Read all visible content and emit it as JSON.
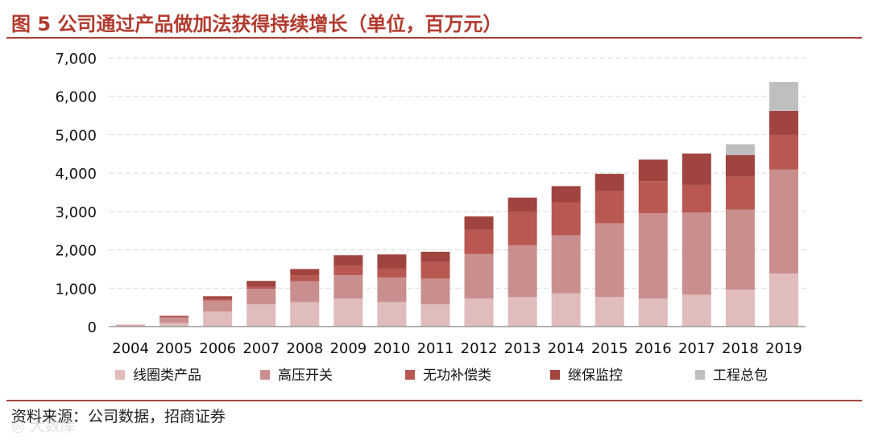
{
  "header": {
    "title": "图 5  公司通过产品做加法获得持续增长（单位，百万元）"
  },
  "footer": {
    "source": "资料来源：公司数据，招商证券",
    "watermark": "◎ 大数库"
  },
  "chart_data": {
    "type": "bar",
    "stacked": true,
    "title": "公司通过产品做加法获得持续增长（单位，百万元）",
    "xlabel": "",
    "ylabel": "",
    "ylim": [
      0,
      7000
    ],
    "yticks": [
      0,
      1000,
      2000,
      3000,
      4000,
      5000,
      6000,
      7000
    ],
    "ytick_labels": [
      "0",
      "1,000",
      "2,000",
      "3,000",
      "4,000",
      "5,000",
      "6,000",
      "7,000"
    ],
    "grid": true,
    "legend_position": "bottom",
    "categories": [
      "2004",
      "2005",
      "2006",
      "2007",
      "2008",
      "2009",
      "2010",
      "2011",
      "2012",
      "2013",
      "2014",
      "2015",
      "2016",
      "2017",
      "2018",
      "2019"
    ],
    "series": [
      {
        "name": "线圈类产品",
        "color": "#e0bcbc",
        "values": [
          30,
          90,
          390,
          580,
          640,
          730,
          640,
          580,
          730,
          770,
          870,
          770,
          730,
          830,
          960,
          1380
        ]
      },
      {
        "name": "高压开关",
        "color": "#c98f8e",
        "values": [
          20,
          150,
          290,
          400,
          540,
          610,
          640,
          670,
          1160,
          1350,
          1510,
          1920,
          2220,
          2140,
          2090,
          2710
        ]
      },
      {
        "name": "无功补偿类",
        "color": "#b95751",
        "values": [
          0,
          20,
          40,
          60,
          160,
          240,
          230,
          430,
          630,
          860,
          850,
          840,
          840,
          720,
          860,
          900
        ]
      },
      {
        "name": "继保监控",
        "color": "#a0443f",
        "values": [
          0,
          20,
          70,
          150,
          160,
          280,
          370,
          270,
          350,
          380,
          430,
          450,
          560,
          820,
          560,
          630
        ]
      },
      {
        "name": "工程总包",
        "color": "#bfbfbf",
        "values": [
          0,
          0,
          0,
          0,
          0,
          0,
          0,
          0,
          0,
          0,
          0,
          0,
          0,
          0,
          280,
          750
        ]
      }
    ]
  }
}
